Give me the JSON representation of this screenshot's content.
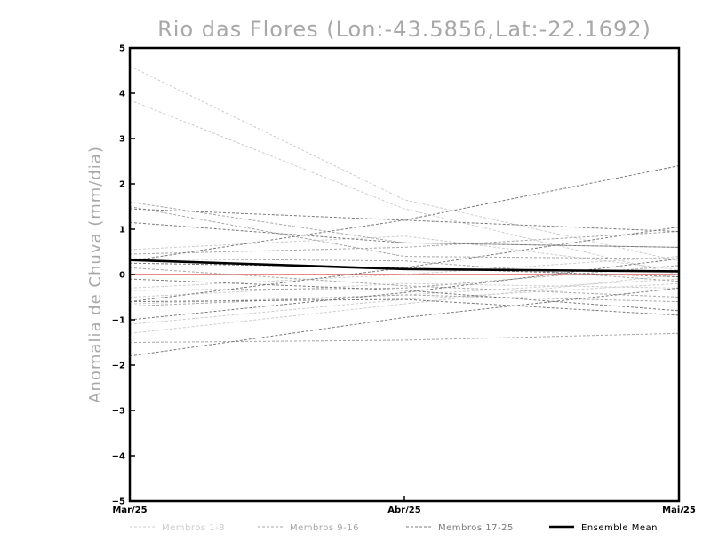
{
  "chart_data": {
    "type": "line",
    "title": "Rio das Flores (Lon:-43.5856,Lat:-22.1692)",
    "xlabel": "",
    "ylabel": "Anomalia de Chuva (mm/dia)",
    "categories": [
      "Mar/25",
      "Abr/25",
      "Mai/25"
    ],
    "ylim": [
      -5,
      5
    ],
    "yticks": [
      -5,
      -4,
      -3,
      -2,
      -1,
      0,
      1,
      2,
      3,
      4,
      5
    ],
    "grid": false,
    "legend_position": "bottom",
    "zero_line_color": "#e06060",
    "groups": [
      {
        "name": "Membros 1-8",
        "color": "#cccccc"
      },
      {
        "name": "Membros 9-16",
        "color": "#a6a6a6"
      },
      {
        "name": "Membros 17-25",
        "color": "#7a7a7a"
      },
      {
        "name": "Ensemble Mean",
        "color": "#000000"
      }
    ],
    "series": [
      {
        "group": 0,
        "values": [
          4.6,
          1.65,
          0.3
        ]
      },
      {
        "group": 0,
        "values": [
          3.85,
          1.45,
          0.0
        ]
      },
      {
        "group": 0,
        "values": [
          0.55,
          0.85,
          0.1
        ]
      },
      {
        "group": 0,
        "values": [
          -0.3,
          0.0,
          0.4
        ]
      },
      {
        "group": 0,
        "values": [
          -0.5,
          -0.2,
          -0.3
        ]
      },
      {
        "group": 0,
        "values": [
          -0.65,
          -0.45,
          -0.1
        ]
      },
      {
        "group": 0,
        "values": [
          -1.1,
          -0.55,
          -0.2
        ]
      },
      {
        "group": 0,
        "values": [
          -1.3,
          -0.65,
          0.0
        ]
      },
      {
        "group": 1,
        "values": [
          1.6,
          0.7,
          0.6
        ]
      },
      {
        "group": 1,
        "values": [
          1.5,
          0.4,
          0.35
        ]
      },
      {
        "group": 1,
        "values": [
          0.45,
          0.6,
          0.95
        ]
      },
      {
        "group": 1,
        "values": [
          0.35,
          0.3,
          -0.15
        ]
      },
      {
        "group": 1,
        "values": [
          0.15,
          -0.25,
          -0.5
        ]
      },
      {
        "group": 1,
        "values": [
          -0.35,
          -0.3,
          0.2
        ]
      },
      {
        "group": 1,
        "values": [
          -0.7,
          -0.45,
          -0.6
        ]
      },
      {
        "group": 1,
        "values": [
          -1.5,
          -1.45,
          -1.3
        ]
      },
      {
        "group": 2,
        "values": [
          1.45,
          1.2,
          0.95
        ]
      },
      {
        "group": 2,
        "values": [
          1.15,
          0.7,
          0.6
        ]
      },
      {
        "group": 2,
        "values": [
          0.3,
          1.2,
          2.4
        ]
      },
      {
        "group": 2,
        "values": [
          0.25,
          0.15,
          -0.05
        ]
      },
      {
        "group": 2,
        "values": [
          -0.6,
          0.15,
          1.05
        ]
      },
      {
        "group": 2,
        "values": [
          -0.1,
          -0.35,
          -0.8
        ]
      },
      {
        "group": 2,
        "values": [
          -0.6,
          -0.55,
          -0.9
        ]
      },
      {
        "group": 2,
        "values": [
          -1.0,
          -0.4,
          0.35
        ]
      },
      {
        "group": 2,
        "values": [
          -1.8,
          -0.95,
          -0.3
        ]
      },
      {
        "group": 3,
        "values": [
          0.32,
          0.12,
          0.07
        ]
      }
    ]
  }
}
